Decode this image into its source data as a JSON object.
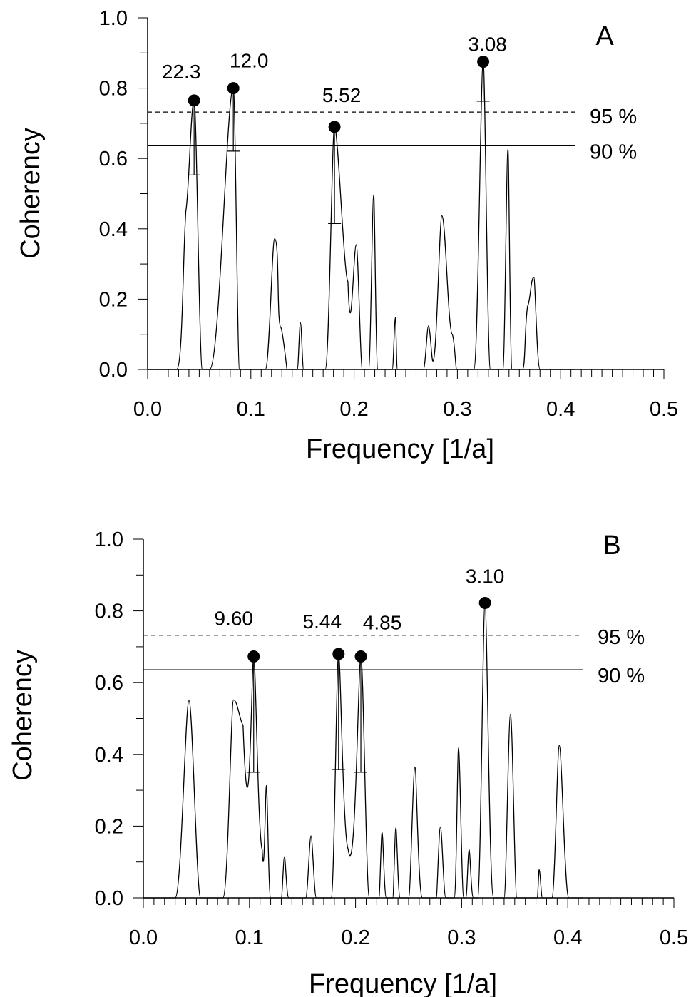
{
  "chart_data": [
    {
      "type": "line",
      "panel_label": "A",
      "xlabel": "Frequency [1/a]",
      "ylabel": "Coherency",
      "xlim": [
        0.0,
        0.5
      ],
      "ylim": [
        0.0,
        1.0
      ],
      "x_ticks": [
        "0.0",
        "0.1",
        "0.2",
        "0.3",
        "0.4",
        "0.5"
      ],
      "y_ticks": [
        "0.0",
        "0.2",
        "0.4",
        "0.6",
        "0.8",
        "1.0"
      ],
      "x_minor_step": 0.01,
      "y_minor_step": 0.1,
      "data_xmax": 0.414,
      "thresholds": [
        {
          "label": "95 %",
          "value": 0.732,
          "style": "dashed"
        },
        {
          "label": "90 %",
          "value": 0.636,
          "style": "solid"
        }
      ],
      "series": [
        {
          "peaks": [
            {
              "x0": 0.028,
              "xl": 0.034,
              "xp": 0.045,
              "xr": 0.05,
              "x1": 0.053,
              "y": 0.765,
              "shoulder": [
                0.037,
                0.45
              ]
            },
            {
              "x0": 0.06,
              "xl": 0.07,
              "xp": 0.083,
              "xr": 0.087,
              "x1": 0.089,
              "y": 0.8
            },
            {
              "x0": 0.114,
              "xl": 0.118,
              "xp": 0.123,
              "xr": 0.131,
              "x1": 0.135,
              "y": 0.372,
              "shoulder": [
                0.129,
                0.12
              ]
            },
            {
              "x0": 0.145,
              "xl": 0.146,
              "xp": 0.148,
              "xr": 0.15,
              "x1": 0.151,
              "y": 0.133
            },
            {
              "x0": 0.172,
              "xl": 0.176,
              "xp": 0.181,
              "xr": 0.187,
              "x1": 0.19,
              "y": 0.69,
              "shoulder": [
                0.194,
                0.25
              ],
              "join": true
            },
            {
              "x0": 0.194,
              "xl": 0.197,
              "xp": 0.202,
              "xr": 0.206,
              "x1": 0.208,
              "y": 0.355
            },
            {
              "x0": 0.214,
              "xl": 0.216,
              "xp": 0.219,
              "xr": 0.221,
              "x1": 0.223,
              "y": 0.497
            },
            {
              "x0": 0.237,
              "xl": 0.238,
              "xp": 0.24,
              "xr": 0.241,
              "x1": 0.242,
              "y": 0.148
            },
            {
              "x0": 0.267,
              "xl": 0.269,
              "xp": 0.272,
              "xr": 0.275,
              "x1": 0.276,
              "y": 0.124,
              "join": true
            },
            {
              "x0": 0.276,
              "xl": 0.28,
              "xp": 0.285,
              "xr": 0.291,
              "x1": 0.299,
              "y": 0.437,
              "shoulder": [
                0.295,
                0.1
              ]
            },
            {
              "x0": 0.316,
              "xl": 0.32,
              "xp": 0.325,
              "xr": 0.329,
              "x1": 0.332,
              "y": 0.875
            },
            {
              "x0": 0.344,
              "xl": 0.346,
              "xp": 0.349,
              "xr": 0.351,
              "x1": 0.353,
              "y": 0.626
            },
            {
              "x0": 0.363,
              "xl": 0.366,
              "xp": 0.374,
              "xr": 0.377,
              "x1": 0.38,
              "y": 0.262,
              "shoulder": [
                0.368,
                0.18
              ]
            }
          ]
        }
      ],
      "marked_peaks": [
        {
          "label": "22.3",
          "x": 0.045,
          "y": 0.765,
          "ci_low": 0.553
        },
        {
          "label": "12.0",
          "x": 0.083,
          "y": 0.8,
          "ci_low": 0.621
        },
        {
          "label": "5.52",
          "x": 0.181,
          "y": 0.69,
          "ci_low": 0.415
        },
        {
          "label": "3.08",
          "x": 0.325,
          "y": 0.875,
          "ci_low": 0.763
        }
      ]
    },
    {
      "type": "line",
      "panel_label": "B",
      "xlabel": "Frequency [1/a]",
      "ylabel": "Coherency",
      "xlim": [
        0.0,
        0.5
      ],
      "ylim": [
        0.0,
        1.0
      ],
      "x_ticks": [
        "0.0",
        "0.1",
        "0.2",
        "0.3",
        "0.4",
        "0.5"
      ],
      "y_ticks": [
        "0.0",
        "0.2",
        "0.4",
        "0.6",
        "0.8",
        "1.0"
      ],
      "x_minor_step": 0.01,
      "y_minor_step": 0.1,
      "data_xmax": 0.414,
      "thresholds": [
        {
          "label": "95 %",
          "value": 0.732,
          "style": "dashed"
        },
        {
          "label": "90 %",
          "value": 0.636,
          "style": "solid"
        }
      ],
      "series": [
        {
          "peaks": [
            {
              "x0": 0.03,
              "xl": 0.036,
              "xp": 0.043,
              "xr": 0.05,
              "x1": 0.054,
              "y": 0.55
            },
            {
              "x0": 0.075,
              "xl": 0.08,
              "xp": 0.085,
              "xr": 0.091,
              "x1": 0.094,
              "y": 0.552,
              "shoulder": [
                0.094,
                0.48
              ],
              "join": true
            },
            {
              "x0": 0.094,
              "xl": 0.1,
              "xp": 0.104,
              "xr": 0.108,
              "x1": 0.112,
              "y": 0.673,
              "join": true
            },
            {
              "x0": 0.112,
              "xl": 0.114,
              "xp": 0.116,
              "xr": 0.118,
              "x1": 0.12,
              "y": 0.313
            },
            {
              "x0": 0.13,
              "xl": 0.131,
              "xp": 0.133,
              "xr": 0.135,
              "x1": 0.137,
              "y": 0.115
            },
            {
              "x0": 0.153,
              "xl": 0.155,
              "xp": 0.158,
              "xr": 0.161,
              "x1": 0.163,
              "y": 0.173
            },
            {
              "x0": 0.177,
              "xl": 0.18,
              "xp": 0.184,
              "xr": 0.188,
              "x1": 0.193,
              "y": 0.68,
              "join": true
            },
            {
              "x0": 0.193,
              "xl": 0.2,
              "xp": 0.205,
              "xr": 0.21,
              "x1": 0.213,
              "y": 0.673
            },
            {
              "x0": 0.222,
              "xl": 0.223,
              "xp": 0.225,
              "xr": 0.227,
              "x1": 0.229,
              "y": 0.183
            },
            {
              "x0": 0.235,
              "xl": 0.236,
              "xp": 0.238,
              "xr": 0.24,
              "x1": 0.242,
              "y": 0.195
            },
            {
              "x0": 0.25,
              "xl": 0.252,
              "xp": 0.256,
              "xr": 0.259,
              "x1": 0.263,
              "y": 0.365
            },
            {
              "x0": 0.276,
              "xl": 0.277,
              "xp": 0.28,
              "xr": 0.283,
              "x1": 0.285,
              "y": 0.198
            },
            {
              "x0": 0.293,
              "xl": 0.295,
              "xp": 0.297,
              "xr": 0.3,
              "x1": 0.302,
              "y": 0.418
            },
            {
              "x0": 0.304,
              "xl": 0.305,
              "xp": 0.307,
              "xr": 0.309,
              "x1": 0.311,
              "y": 0.135
            },
            {
              "x0": 0.315,
              "xl": 0.318,
              "xp": 0.322,
              "xr": 0.326,
              "x1": 0.33,
              "y": 0.822
            },
            {
              "x0": 0.34,
              "xl": 0.342,
              "xp": 0.346,
              "xr": 0.35,
              "x1": 0.352,
              "y": 0.512
            },
            {
              "x0": 0.371,
              "xl": 0.372,
              "xp": 0.373,
              "xr": 0.375,
              "x1": 0.376,
              "y": 0.079
            },
            {
              "x0": 0.385,
              "xl": 0.388,
              "xp": 0.392,
              "xr": 0.397,
              "x1": 0.401,
              "y": 0.425
            }
          ]
        }
      ],
      "marked_peaks": [
        {
          "label": "9.60",
          "x": 0.104,
          "y": 0.673,
          "ci_low": 0.35
        },
        {
          "label": "5.44",
          "x": 0.184,
          "y": 0.68,
          "ci_low": 0.358
        },
        {
          "label": "4.85",
          "x": 0.205,
          "y": 0.673,
          "ci_low": 0.35
        },
        {
          "label": "3.10",
          "x": 0.322,
          "y": 0.822,
          "ci_low": null
        }
      ]
    }
  ]
}
